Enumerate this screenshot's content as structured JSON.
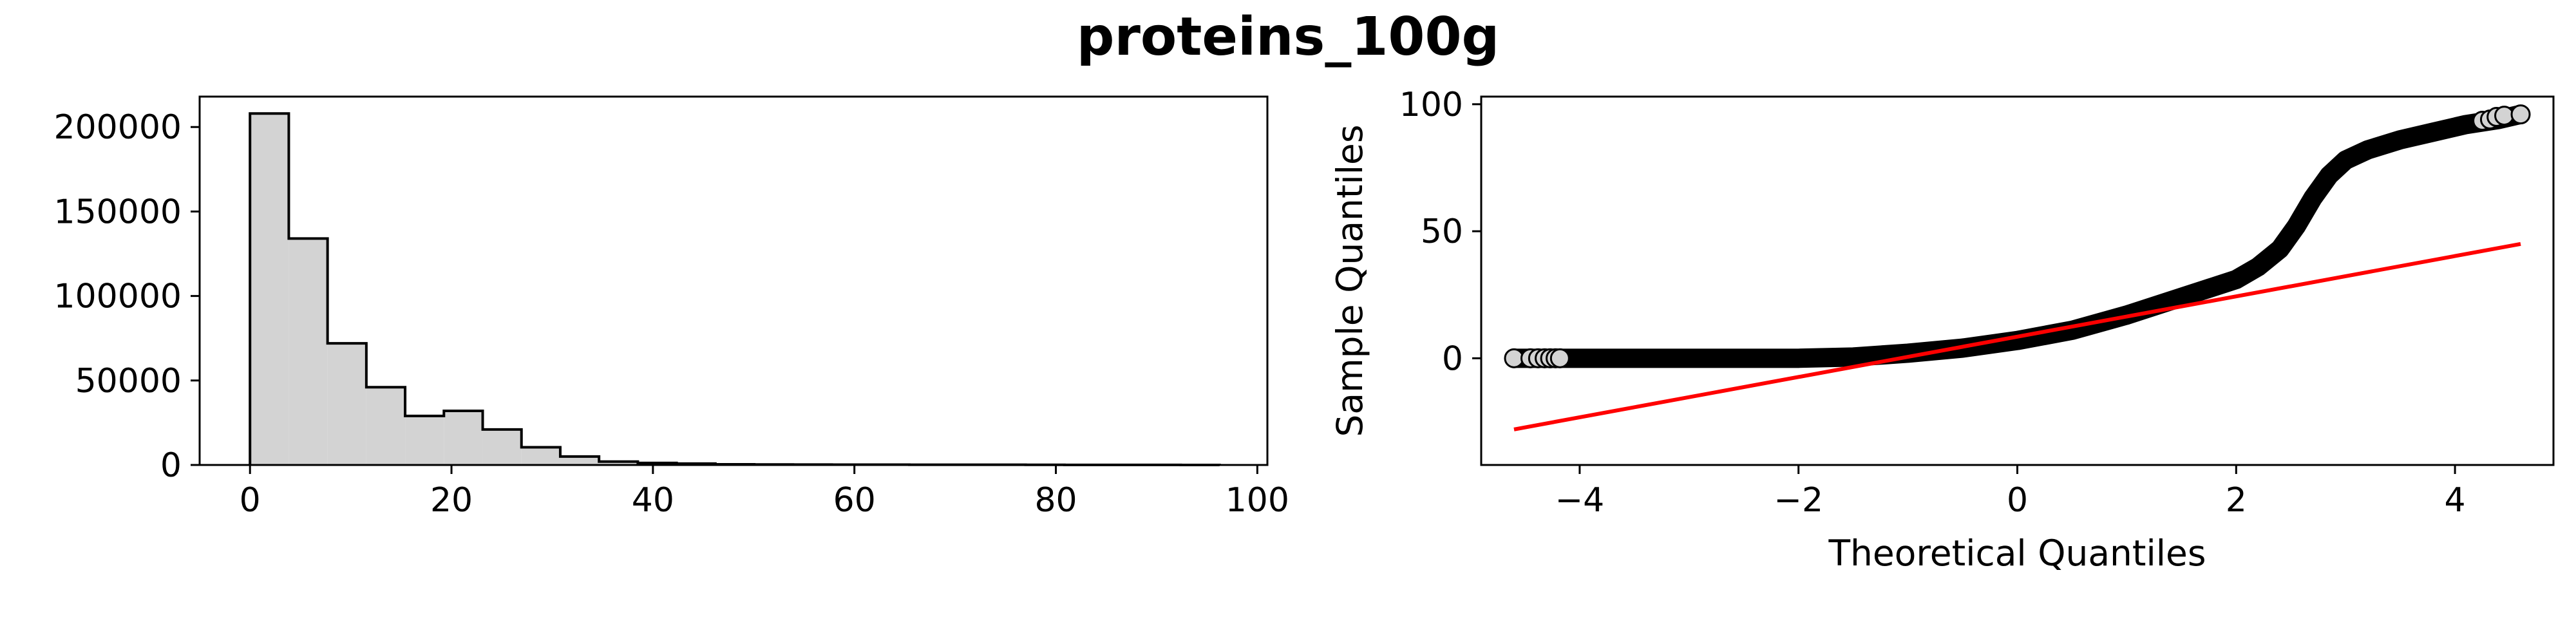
{
  "figure": {
    "title": "proteins_100g"
  },
  "chart_data": [
    {
      "type": "bar",
      "subtype": "histogram",
      "style": "step-filled",
      "fill_color": "#d3d3d3",
      "edge_color": "#000000",
      "bin_edges": [
        0,
        3.85,
        7.7,
        11.55,
        15.4,
        19.25,
        23.1,
        26.95,
        30.8,
        34.65,
        38.5,
        42.35,
        46.2,
        50.05,
        53.9,
        57.75,
        61.6,
        65.45,
        69.3,
        73.15,
        77.0,
        80.85,
        84.7,
        88.55,
        92.4,
        96.25
      ],
      "values": [
        208000,
        134000,
        72000,
        46000,
        29000,
        32000,
        21000,
        10500,
        5000,
        2000,
        1200,
        800,
        400,
        300,
        250,
        200,
        180,
        150,
        130,
        120,
        100,
        60,
        40,
        30,
        20
      ],
      "xlim": [
        -5,
        101
      ],
      "ylim": [
        0,
        218000
      ],
      "xticks": [
        0,
        20,
        40,
        60,
        80,
        100
      ],
      "yticks": [
        0,
        50000,
        100000,
        150000,
        200000
      ],
      "xtick_labels": [
        "0",
        "20",
        "40",
        "60",
        "80",
        "100"
      ],
      "ytick_labels": [
        "0",
        "50000",
        "100000",
        "150000",
        "200000"
      ],
      "xlabel": "",
      "ylabel": ""
    },
    {
      "type": "scatter",
      "subtype": "qq-plot",
      "xlabel": "Theoretical Quantiles",
      "ylabel": "Sample Quantiles",
      "xlim": [
        -4.9,
        4.9
      ],
      "ylim": [
        -42,
        103
      ],
      "xticks": [
        -4,
        -2,
        0,
        2,
        4
      ],
      "yticks": [
        0,
        50,
        100
      ],
      "xtick_labels": [
        "−4",
        "−2",
        "0",
        "2",
        "4"
      ],
      "ytick_labels": [
        "0",
        "50",
        "100"
      ],
      "marker_face": "#d3d3d3",
      "marker_edge": "#000000",
      "curve": {
        "x": [
          -4.6,
          -4.3,
          -4.0,
          -3.0,
          -2.0,
          -1.5,
          -1.0,
          -0.5,
          0.0,
          0.5,
          1.0,
          1.5,
          2.0,
          2.2,
          2.4,
          2.55,
          2.7,
          2.85,
          3.0,
          3.2,
          3.5,
          3.8,
          4.1,
          4.4,
          4.6
        ],
        "y": [
          0,
          0,
          0,
          0,
          0,
          0.5,
          2,
          4,
          7,
          11,
          17,
          24,
          31,
          36,
          43,
          52,
          63,
          72,
          78,
          82,
          86,
          89,
          92,
          94,
          96
        ]
      },
      "tail_points": {
        "x": [
          -4.6,
          -4.45,
          -4.38,
          -4.32,
          -4.27,
          -4.22,
          -4.18,
          4.25,
          4.32,
          4.38,
          4.45,
          4.6
        ],
        "y": [
          0,
          0,
          0,
          0,
          0,
          0,
          0,
          93.5,
          94,
          95,
          95.5,
          96
        ]
      },
      "reference_line": {
        "x": [
          -4.6,
          4.6
        ],
        "y": [
          -28,
          45
        ],
        "color": "#ff0000"
      }
    }
  ]
}
